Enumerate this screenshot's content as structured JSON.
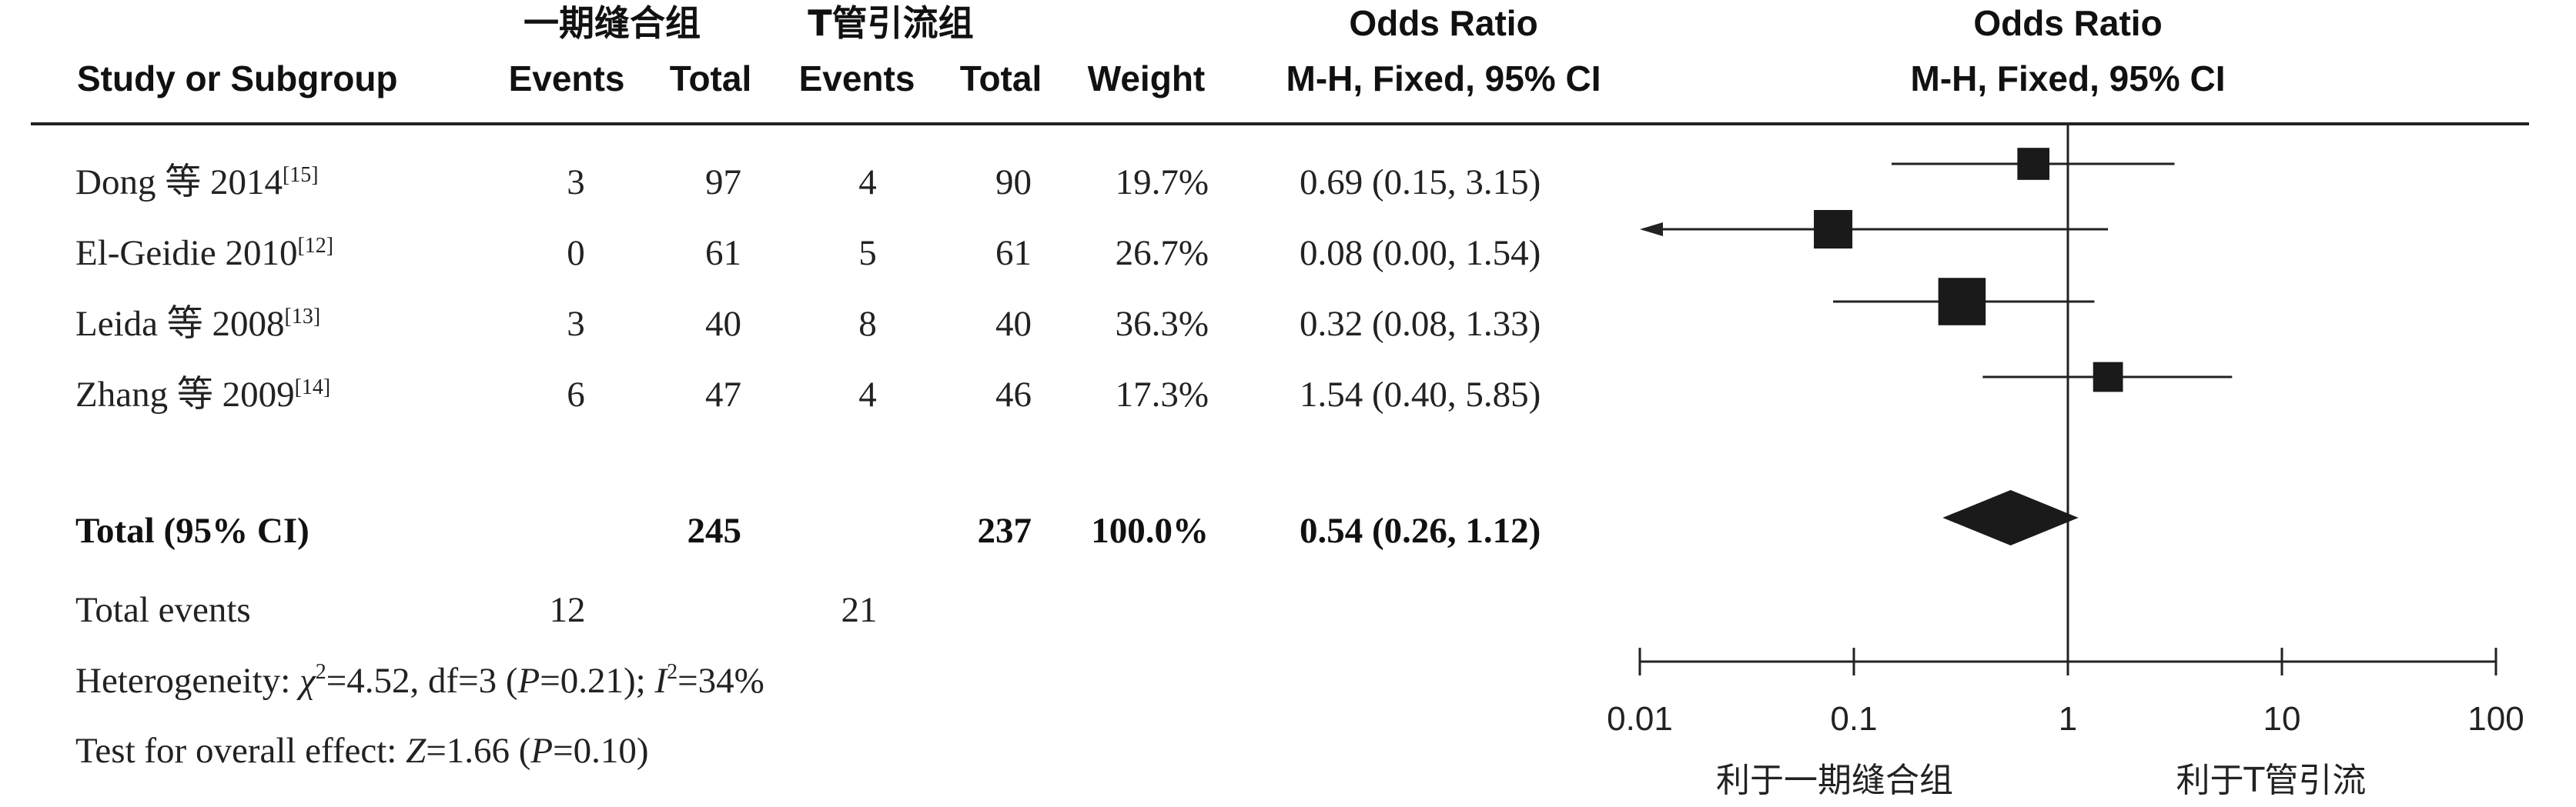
{
  "header": {
    "group1_name": "一期缝合组",
    "group2_name": "T管引流组",
    "col_study": "Study or Subgroup",
    "col_events": "Events",
    "col_total": "Total",
    "col_weight": "Weight",
    "col_or_title": "Odds Ratio",
    "col_or_method": "M-H, Fixed, 95% CI",
    "plot_or_title": "Odds Ratio",
    "plot_or_method": "M-H, Fixed, 95% CI"
  },
  "studies": [
    {
      "name": "Dong 等 2014",
      "ref": "[15]",
      "e1": "3",
      "n1": "97",
      "e2": "4",
      "n2": "90",
      "weight": "19.7%",
      "ci_text": "0.69 (0.15, 3.15)"
    },
    {
      "name": "El-Geidie 2010",
      "ref": "[12]",
      "e1": "0",
      "n1": "61",
      "e2": "5",
      "n2": "61",
      "weight": "26.7%",
      "ci_text": "0.08 (0.00, 1.54)"
    },
    {
      "name": "Leida 等 2008",
      "ref": "[13]",
      "e1": "3",
      "n1": "40",
      "e2": "8",
      "n2": "40",
      "weight": "36.3%",
      "ci_text": "0.32 (0.08, 1.33)"
    },
    {
      "name": "Zhang 等 2009",
      "ref": "[14]",
      "e1": "6",
      "n1": "47",
      "e2": "4",
      "n2": "46",
      "weight": "17.3%",
      "ci_text": "1.54 (0.40, 5.85)"
    }
  ],
  "total": {
    "label": "Total (95% CI)",
    "n1": "245",
    "n2": "237",
    "weight": "100.0%",
    "ci_text": "0.54 (0.26, 1.12)"
  },
  "total_events": {
    "label": "Total events",
    "e1": "12",
    "e2": "21"
  },
  "heterogeneity": {
    "prefix": "Heterogeneity: ",
    "chi_sym": "χ",
    "chi_rest": "=4.52, df=3 (",
    "p_sym": "P",
    "p_rest": "=0.21); ",
    "i_sym": "I",
    "i_rest": "=34%",
    "sq": "2"
  },
  "overall": {
    "prefix": "Test for overall effect: ",
    "z_sym": "Z",
    "z_rest": "=1.66 (",
    "p_sym": "P",
    "p_rest": "=0.10)"
  },
  "axis": {
    "ticks": [
      "0.01",
      "0.1",
      "1",
      "10",
      "100"
    ],
    "favours_left": "利于一期缝合组",
    "favours_right": "利于T管引流"
  },
  "chart_data": {
    "type": "forest",
    "x_scale": "log10",
    "xlim": [
      0.01,
      100
    ],
    "reference_line": 1,
    "studies": [
      {
        "name": "Dong 等 2014",
        "or": 0.69,
        "ci_low": 0.15,
        "ci_high": 3.15,
        "weight": 19.7
      },
      {
        "name": "El-Geidie 2010",
        "or": 0.08,
        "ci_low": 0.0,
        "ci_high": 1.54,
        "weight": 26.7,
        "arrow_left": true
      },
      {
        "name": "Leida 等 2008",
        "or": 0.32,
        "ci_low": 0.08,
        "ci_high": 1.33,
        "weight": 36.3
      },
      {
        "name": "Zhang 等 2009",
        "or": 1.54,
        "ci_low": 0.4,
        "ci_high": 5.85,
        "weight": 17.3
      }
    ],
    "pooled": {
      "or": 0.54,
      "ci_low": 0.26,
      "ci_high": 1.12
    }
  },
  "colors": {
    "ink": "#222222",
    "marker": "#1a1a1a"
  }
}
